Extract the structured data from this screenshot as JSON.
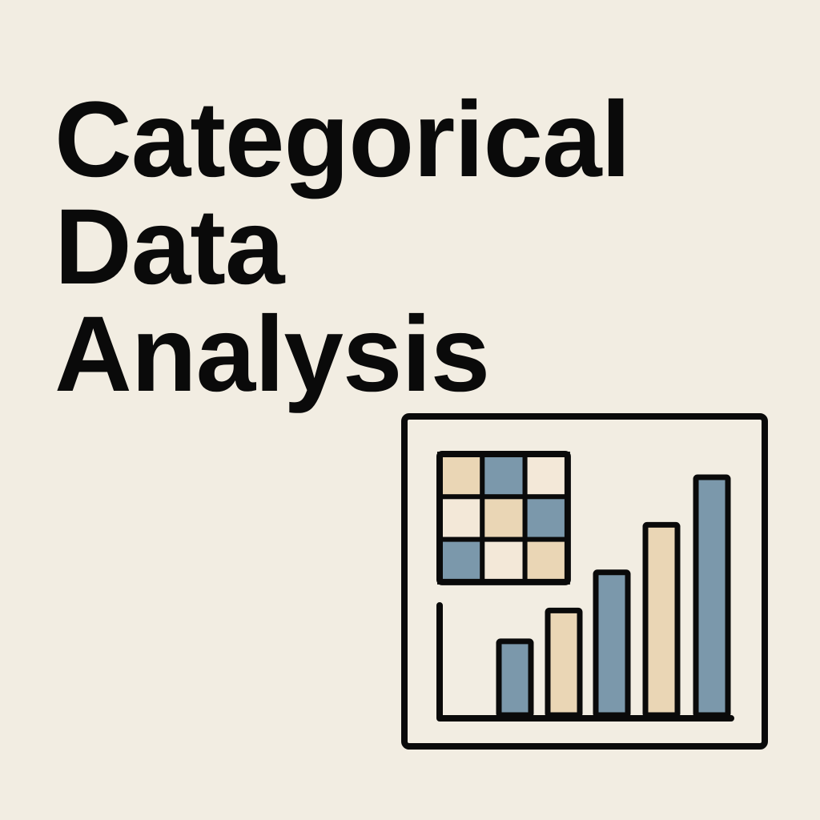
{
  "title": {
    "lines": [
      "Categorical",
      "Data",
      "Analysis"
    ]
  },
  "illustration": {
    "frame_icon": "framed-chart-icon",
    "grid_icon": "contingency-table-icon",
    "bars_icon": "bar-chart-icon",
    "grid_rows": [
      [
        "tan",
        "blue",
        "light"
      ],
      [
        "light",
        "tan",
        "blue"
      ],
      [
        "blue",
        "light",
        "tan"
      ]
    ],
    "bar_colors": [
      "blue",
      "tan",
      "blue",
      "tan",
      "blue"
    ],
    "bar_levels": [
      0.31,
      0.44,
      0.6,
      0.8,
      1.0
    ]
  },
  "colors": {
    "background": "#f2ede2",
    "ink": "#0a0a0a",
    "blue": "#7b98ab",
    "tan": "#ead6b5",
    "light": "#f3e8d8"
  }
}
